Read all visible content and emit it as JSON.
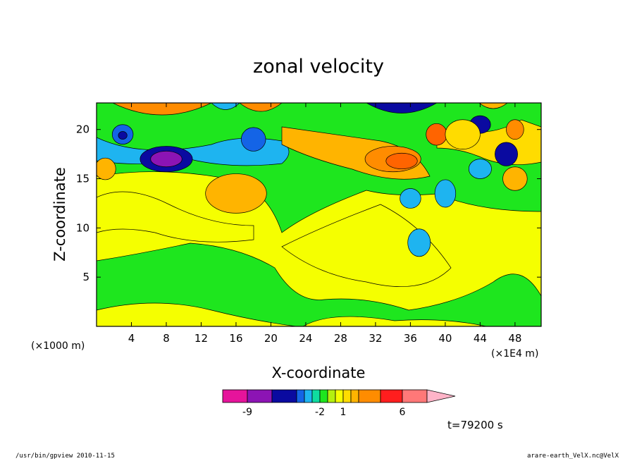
{
  "chart_data": {
    "type": "heatmap",
    "title": "zonal velocity",
    "xlabel": "X-coordinate",
    "ylabel": "Z-coordinate",
    "x_unit_left": "(×1000 m)",
    "x_unit_right": "(×1E4 m)",
    "x_ticks": [
      "4",
      "8",
      "12",
      "16",
      "20",
      "24",
      "28",
      "32",
      "36",
      "40",
      "44",
      "48"
    ],
    "x_tick_values": [
      4,
      8,
      12,
      16,
      20,
      24,
      28,
      32,
      36,
      40,
      44,
      48
    ],
    "y_ticks": [
      "5",
      "10",
      "15",
      "20"
    ],
    "y_tick_values": [
      5,
      10,
      15,
      20
    ],
    "xlim": [
      0,
      51
    ],
    "ylim": [
      0,
      22.7
    ],
    "time_label": "t=79200 s",
    "colorbar": {
      "tick_labels": [
        "-9",
        "-2",
        "1",
        "6"
      ],
      "tick_boundary_index": [
        1,
        6,
        9,
        13
      ],
      "colors": [
        "#e6149b",
        "#8c14b4",
        "#0a0aa0",
        "#1464e6",
        "#1eb4f0",
        "#0fdca0",
        "#1ee61e",
        "#b4f00f",
        "#f5ff00",
        "#ffdc00",
        "#ffb400",
        "#ff8c00",
        "#ff6400",
        "#ff1e1e",
        "#ff7878",
        "#ffb4c8"
      ]
    },
    "grid": false,
    "blobs": [
      {
        "x": 8,
        "y": 17,
        "rx": 3,
        "ry": 1.3,
        "level": 2
      },
      {
        "x": 8,
        "y": 17,
        "rx": 1.8,
        "ry": 0.8,
        "level": 1
      },
      {
        "x": 3,
        "y": 19.5,
        "rx": 1.2,
        "ry": 1,
        "level": 3
      },
      {
        "x": 3,
        "y": 19.4,
        "rx": 0.5,
        "ry": 0.4,
        "level": 2
      },
      {
        "x": 18,
        "y": 19,
        "rx": 1.4,
        "ry": 1.2,
        "level": 3
      },
      {
        "x": 34,
        "y": 17,
        "rx": 3.2,
        "ry": 1.3,
        "level": 11
      },
      {
        "x": 35,
        "y": 16.8,
        "rx": 1.8,
        "ry": 0.8,
        "level": 12
      },
      {
        "x": 16,
        "y": 13.5,
        "rx": 3.5,
        "ry": 2,
        "level": 10
      },
      {
        "x": 39,
        "y": 19.5,
        "rx": 1.2,
        "ry": 1.1,
        "level": 12
      },
      {
        "x": 40,
        "y": 13.5,
        "rx": 1.2,
        "ry": 1.4,
        "level": 4
      },
      {
        "x": 36,
        "y": 13,
        "rx": 1.2,
        "ry": 1,
        "level": 4
      },
      {
        "x": 37,
        "y": 8.5,
        "rx": 1.3,
        "ry": 1.4,
        "level": 4
      },
      {
        "x": 44,
        "y": 16,
        "rx": 1.3,
        "ry": 1,
        "level": 4
      },
      {
        "x": 47,
        "y": 17.5,
        "rx": 1.3,
        "ry": 1.2,
        "level": 2
      },
      {
        "x": 44,
        "y": 20.5,
        "rx": 1.2,
        "ry": 0.9,
        "level": 2
      },
      {
        "x": 48,
        "y": 15,
        "rx": 1.4,
        "ry": 1.2,
        "level": 10
      },
      {
        "x": 48,
        "y": 20,
        "rx": 1,
        "ry": 1,
        "level": 11
      },
      {
        "x": 1,
        "y": 16,
        "rx": 1.2,
        "ry": 1.1,
        "level": 10
      },
      {
        "x": 42,
        "y": 19.5,
        "rx": 2,
        "ry": 1.5,
        "level": 9
      }
    ]
  },
  "footer": {
    "left": "/usr/bin/gpview 2010-11-15",
    "right": "arare-earth_VelX.nc@VelX"
  }
}
